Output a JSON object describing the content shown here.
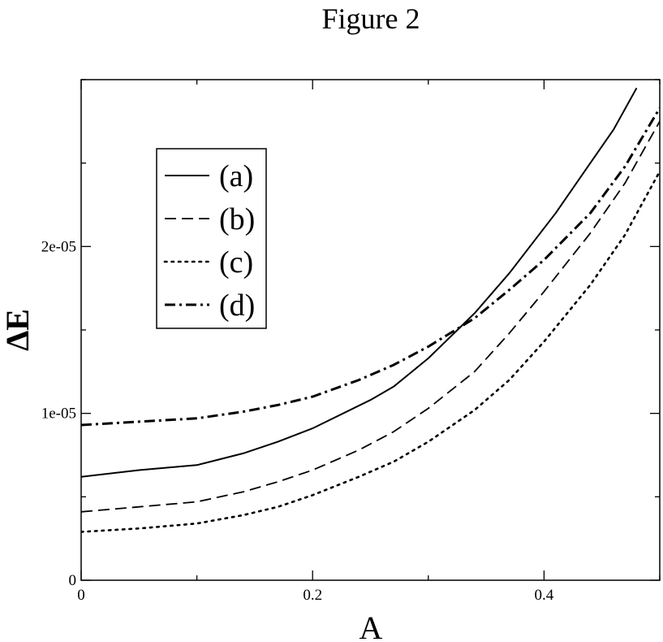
{
  "chart_data": {
    "type": "line",
    "title": "Figure 2",
    "xlabel": "A",
    "ylabel": "ΔE",
    "xlim": [
      0,
      0.5
    ],
    "ylim": [
      0,
      3e-05
    ],
    "x_ticks": [
      0,
      0.2,
      0.4
    ],
    "x_tick_labels": [
      "0",
      "0.2",
      "0.4"
    ],
    "y_ticks": [
      0,
      1e-05,
      2e-05
    ],
    "y_tick_labels": [
      "0",
      "1e-05",
      "2e-05"
    ],
    "grid": false,
    "legend_position": "top-left",
    "series": [
      {
        "name": "(a)",
        "style": "solid",
        "x": [
          0,
          0.05,
          0.1,
          0.14,
          0.17,
          0.2,
          0.25,
          0.27,
          0.3,
          0.34,
          0.37,
          0.41,
          0.44,
          0.46,
          0.48
        ],
        "y": [
          6.2e-06,
          6.6e-06,
          6.9e-06,
          7.6e-06,
          8.3e-06,
          9.1e-06,
          1.08e-05,
          1.16e-05,
          1.33e-05,
          1.6e-05,
          1.84e-05,
          2.2e-05,
          2.5e-05,
          2.7e-05,
          2.95e-05
        ]
      },
      {
        "name": "(b)",
        "style": "dashed",
        "x": [
          0,
          0.05,
          0.1,
          0.14,
          0.17,
          0.2,
          0.24,
          0.27,
          0.3,
          0.34,
          0.37,
          0.4,
          0.44,
          0.47,
          0.5
        ],
        "y": [
          4.1e-06,
          4.4e-06,
          4.7e-06,
          5.3e-06,
          5.9e-06,
          6.6e-06,
          7.8e-06,
          8.9e-06,
          1.03e-05,
          1.25e-05,
          1.48e-05,
          1.73e-05,
          2.08e-05,
          2.38e-05,
          2.75e-05
        ]
      },
      {
        "name": "(c)",
        "style": "dotted",
        "x": [
          0,
          0.05,
          0.1,
          0.14,
          0.17,
          0.2,
          0.24,
          0.27,
          0.3,
          0.34,
          0.37,
          0.4,
          0.44,
          0.47,
          0.5
        ],
        "y": [
          2.9e-06,
          3.1e-06,
          3.4e-06,
          3.9e-06,
          4.4e-06,
          5.1e-06,
          6.2e-06,
          7.1e-06,
          8.3e-06,
          1.02e-05,
          1.2e-05,
          1.43e-05,
          1.77e-05,
          2.07e-05,
          2.45e-05
        ]
      },
      {
        "name": "(d)",
        "style": "dash-dot",
        "x": [
          0,
          0.05,
          0.1,
          0.14,
          0.17,
          0.2,
          0.24,
          0.27,
          0.3,
          0.34,
          0.37,
          0.4,
          0.44,
          0.47,
          0.5
        ],
        "y": [
          9.3e-06,
          9.5e-06,
          9.7e-06,
          1.01e-05,
          1.05e-05,
          1.1e-05,
          1.2e-05,
          1.29e-05,
          1.4e-05,
          1.57e-05,
          1.74e-05,
          1.92e-05,
          2.2e-05,
          2.48e-05,
          2.83e-05
        ]
      }
    ]
  }
}
